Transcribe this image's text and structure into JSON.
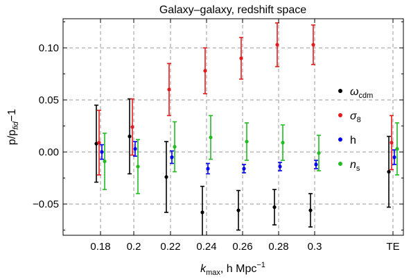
{
  "chart_data": {
    "type": "scatter",
    "title": "Galaxy–galaxy, redshift space",
    "xlabel": "k_max, h Mpc^-1",
    "ylabel": "p/p_fid−1",
    "categories": [
      "0.18",
      "0.2",
      "0.22",
      "0.24",
      "0.26",
      "0.28",
      "0.3",
      "TE"
    ],
    "ylim": [
      -0.08,
      0.128
    ],
    "yticks": [
      -0.05,
      0.0,
      0.05,
      0.1
    ],
    "ytick_labels": [
      "−0.05",
      "0.00",
      "0.05",
      "0.10"
    ],
    "grid": true,
    "legend_position": "right",
    "series": [
      {
        "name": "ω_cdm",
        "color": "#000000",
        "values": [
          0.008,
          0.015,
          -0.024,
          -0.058,
          -0.056,
          -0.053,
          -0.056,
          -0.019
        ],
        "errors": [
          0.037,
          0.036,
          0.034,
          0.025,
          0.019,
          0.017,
          0.016,
          0.034
        ]
      },
      {
        "name": "σ_8",
        "color": "#e41a1c",
        "values": [
          0.009,
          0.024,
          0.06,
          0.078,
          0.09,
          0.103,
          0.103,
          0.009
        ],
        "errors": [
          0.031,
          0.027,
          0.025,
          0.022,
          0.02,
          0.021,
          0.019,
          0.026
        ]
      },
      {
        "name": "h",
        "color": "#0000ee",
        "values": [
          0.0,
          0.003,
          -0.005,
          -0.016,
          -0.016,
          -0.014,
          -0.012,
          -0.005
        ],
        "errors": [
          0.007,
          0.007,
          0.006,
          0.005,
          0.004,
          0.004,
          0.004,
          0.007
        ]
      },
      {
        "name": "n_s",
        "color": "#22bb22",
        "values": [
          -0.009,
          -0.014,
          0.005,
          0.014,
          0.01,
          0.009,
          -0.001,
          0.003
        ],
        "errors": [
          0.027,
          0.026,
          0.024,
          0.021,
          0.018,
          0.017,
          0.017,
          0.025
        ]
      }
    ]
  },
  "legend": [
    {
      "symbol": "ω",
      "sub": "cdm",
      "color": "#000000"
    },
    {
      "symbol": "σ",
      "sub": "8",
      "color": "#e41a1c"
    },
    {
      "symbol": "h",
      "sub": "",
      "color": "#0000ee"
    },
    {
      "symbol": "n",
      "sub": "s",
      "color": "#22bb22"
    }
  ],
  "axis_text": {
    "xlabel_main": "k",
    "xlabel_sub": "max",
    "xlabel_rest": ", h Mpc",
    "xlabel_sup": "−1",
    "ylabel_main": "p/p",
    "ylabel_sub": "fid",
    "ylabel_rest": "−1"
  }
}
